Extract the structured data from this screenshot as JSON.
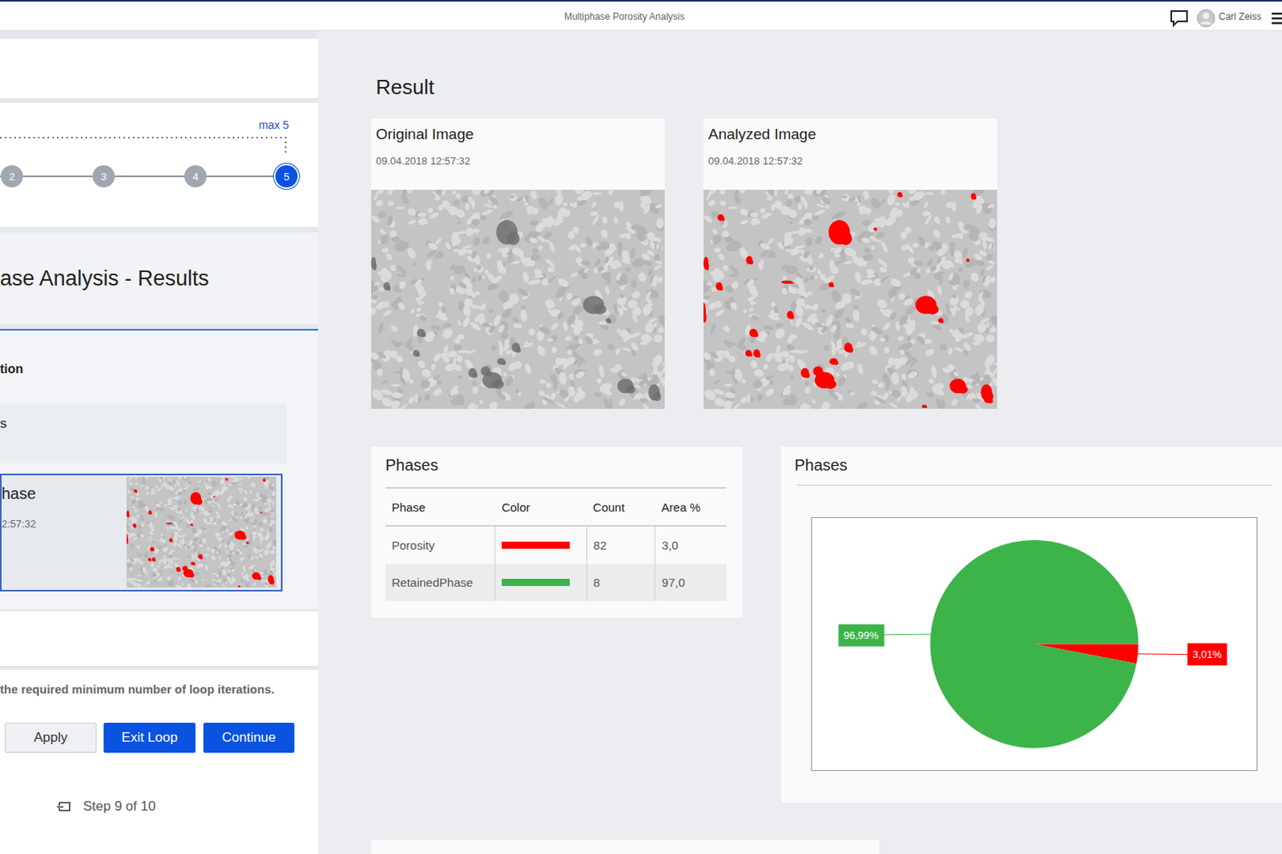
{
  "app": {
    "title": "Multiphase Porosity Analysis",
    "user": "Carl Zeiss"
  },
  "stepper": {
    "max_label": "max 5",
    "steps": [
      2,
      3,
      4,
      5
    ]
  },
  "left_panel": {
    "heading": "ase Analysis - Results",
    "section": "tion",
    "item": "s",
    "selected": {
      "title": "hase",
      "time": "2:57:32"
    },
    "message": "the required minimum number of loop iterations.",
    "buttons": [
      "Apply",
      "Exit Loop",
      "Continue"
    ],
    "step": "Step 9 of 10"
  },
  "result": {
    "title": "Result",
    "images": [
      {
        "title": "Original Image",
        "time": "09.04.2018 12:57:32"
      },
      {
        "title": "Analyzed Image",
        "time": "09.04.2018 12:57:32"
      }
    ]
  },
  "phases_table": {
    "title": "Phases",
    "header": [
      "Phase",
      "Color",
      "Count",
      "Area %"
    ],
    "rows": [
      {
        "phase": "Porosity",
        "color": "#ff0000",
        "count": 82,
        "area": "3,0"
      },
      {
        "phase": "RetainedPhase",
        "color": "#3cb44a",
        "count": 8,
        "area": "97,0"
      }
    ]
  },
  "chart_data": {
    "type": "pie",
    "title": "Phases",
    "values": [
      3.01,
      96.99
    ],
    "value_labels": [
      "3,01%",
      "96,99%"
    ],
    "colors": [
      "#ff0000",
      "#3cb44a"
    ],
    "data_labels": true
  }
}
